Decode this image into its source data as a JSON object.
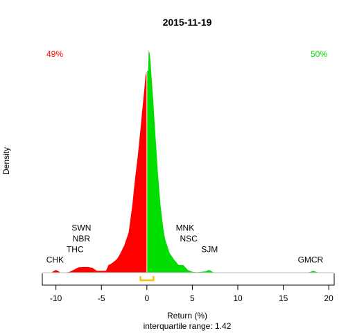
{
  "chart_data": {
    "type": "area",
    "title": "2015-11-19",
    "xlabel": "Return (%)",
    "ylabel": "Density",
    "subtitle": "interquartile range: 1.42",
    "xlim": [
      -11.5,
      20.6
    ],
    "xticks": [
      -10,
      -5,
      0,
      5,
      10,
      15,
      20
    ],
    "ylim": [
      0,
      1
    ],
    "grid": false,
    "negative_share": "49%",
    "positive_share": "50%",
    "colors": {
      "negative": "#ff0000",
      "positive": "#00dd00",
      "iqr": "#ffc000",
      "baseline": "#bbbbbb"
    },
    "iqr_range": [
      -0.7,
      0.72
    ],
    "density": {
      "x": [
        -10.5,
        -10.3,
        -10.0,
        -9.7,
        -9.5,
        -9.0,
        -8.5,
        -8.0,
        -7.7,
        -7.5,
        -7.0,
        -6.5,
        -6.0,
        -5.5,
        -5.0,
        -4.5,
        -4.2,
        -4.0,
        -3.6,
        -3.3,
        -3.0,
        -2.5,
        -2.0,
        -1.6,
        -1.3,
        -1.0,
        -0.7,
        -0.5,
        -0.3,
        -0.15,
        0.0,
        0.15,
        0.2,
        0.3,
        0.4,
        0.5,
        0.7,
        0.9,
        1.2,
        1.5,
        1.8,
        2.0,
        2.5,
        3.0,
        3.5,
        4.0,
        4.5,
        5.0,
        5.5,
        6.0,
        6.5,
        6.8,
        7.0,
        7.3,
        7.6,
        8.0,
        17.6,
        18.0,
        18.3,
        18.6,
        18.9
      ],
      "y": [
        0.0,
        0.006,
        0.012,
        0.006,
        0.0,
        0.0,
        0.004,
        0.013,
        0.02,
        0.024,
        0.025,
        0.025,
        0.022,
        0.008,
        0.008,
        0.008,
        0.035,
        0.038,
        0.05,
        0.06,
        0.08,
        0.12,
        0.18,
        0.3,
        0.42,
        0.52,
        0.64,
        0.73,
        0.81,
        0.88,
        0.9,
        0.9,
        0.99,
        0.98,
        0.94,
        0.88,
        0.77,
        0.64,
        0.45,
        0.3,
        0.2,
        0.15,
        0.088,
        0.058,
        0.034,
        0.034,
        0.012,
        0.004,
        0.002,
        0.004,
        0.006,
        0.012,
        0.009,
        0.002,
        0.0,
        0.0,
        0.0,
        0.004,
        0.008,
        0.004,
        0.0
      ]
    },
    "annotations": [
      {
        "text": "CHK",
        "x": -10.1,
        "y": 0.045
      },
      {
        "text": "THC",
        "x": -7.9,
        "y": 0.092
      },
      {
        "text": "NBR",
        "x": -7.2,
        "y": 0.14
      },
      {
        "text": "SWN",
        "x": -7.2,
        "y": 0.187
      },
      {
        "text": "MNK",
        "x": 4.2,
        "y": 0.187
      },
      {
        "text": "NSC",
        "x": 4.6,
        "y": 0.14
      },
      {
        "text": "SJM",
        "x": 6.9,
        "y": 0.092
      },
      {
        "text": "GMCR",
        "x": 18.0,
        "y": 0.045
      }
    ]
  }
}
